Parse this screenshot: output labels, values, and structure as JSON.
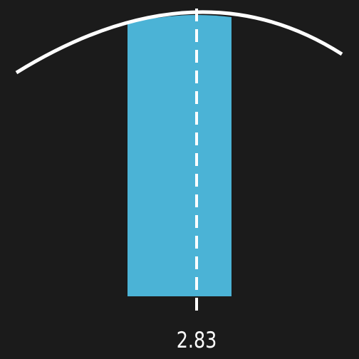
{
  "indicator": {
    "value_label": "2.83"
  },
  "colors": {
    "background": "#1b1b1b",
    "bar": "#4bb3d6",
    "curve": "#ffffff",
    "marker": "#ffffff"
  }
}
